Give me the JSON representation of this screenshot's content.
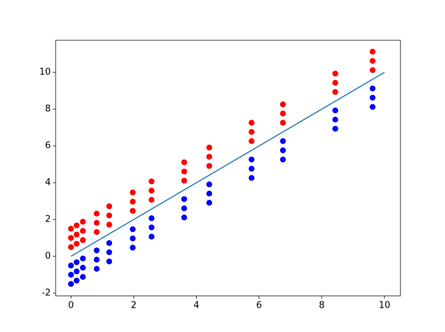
{
  "chart_data": {
    "type": "scatter",
    "xlim": [
      -0.49,
      10.51
    ],
    "ylim": [
      -2.15,
      11.74
    ],
    "xticks": [
      0,
      2,
      4,
      6,
      8,
      10
    ],
    "yticks": [
      -2,
      0,
      2,
      4,
      6,
      8,
      10
    ],
    "grid": false,
    "series": [
      {
        "type": "scatter",
        "color": "#ff0000",
        "x": [
          0,
          0,
          0,
          0.18,
          0.18,
          0.18,
          0.38,
          0.38,
          0.38,
          0.82,
          0.82,
          0.82,
          1.22,
          1.22,
          1.22,
          1.97,
          1.97,
          1.97,
          2.57,
          2.57,
          2.57,
          3.61,
          3.61,
          3.61,
          4.41,
          4.41,
          4.41,
          5.76,
          5.76,
          5.76,
          6.76,
          6.76,
          6.76,
          8.43,
          8.43,
          8.43,
          9.62,
          9.62,
          9.62
        ],
        "values": [
          0.5,
          1,
          1.5,
          0.68,
          1.18,
          1.68,
          0.88,
          1.38,
          1.88,
          1.32,
          1.82,
          2.32,
          1.72,
          2.22,
          2.72,
          2.47,
          2.97,
          3.47,
          3.07,
          3.57,
          4.07,
          4.11,
          4.61,
          5.11,
          4.91,
          5.41,
          5.91,
          6.26,
          6.76,
          7.26,
          7.26,
          7.76,
          8.26,
          8.93,
          9.43,
          9.93,
          10.12,
          10.62,
          11.12
        ]
      },
      {
        "type": "scatter",
        "color": "#0000ff",
        "x": [
          0,
          0,
          0,
          0.18,
          0.18,
          0.18,
          0.38,
          0.38,
          0.38,
          0.82,
          0.82,
          0.82,
          1.22,
          1.22,
          1.22,
          1.97,
          1.97,
          1.97,
          2.57,
          2.57,
          2.57,
          3.61,
          3.61,
          3.61,
          4.41,
          4.41,
          4.41,
          5.76,
          5.76,
          5.76,
          6.76,
          6.76,
          6.76,
          8.43,
          8.43,
          8.43,
          9.62,
          9.62,
          9.62
        ],
        "values": [
          -0.5,
          -1,
          -1.5,
          -0.32,
          -0.82,
          -1.32,
          -0.12,
          -0.62,
          -1.12,
          0.32,
          -0.18,
          -0.68,
          0.72,
          0.22,
          -0.28,
          1.47,
          0.97,
          0.47,
          2.07,
          1.57,
          1.07,
          3.11,
          2.61,
          2.11,
          3.91,
          3.41,
          2.91,
          5.26,
          4.76,
          4.26,
          6.26,
          5.76,
          5.26,
          7.93,
          7.43,
          6.93,
          9.12,
          8.62,
          8.12
        ]
      },
      {
        "type": "line",
        "color": "#1f77b4",
        "x": [
          0,
          10
        ],
        "values": [
          0,
          10
        ]
      }
    ]
  }
}
